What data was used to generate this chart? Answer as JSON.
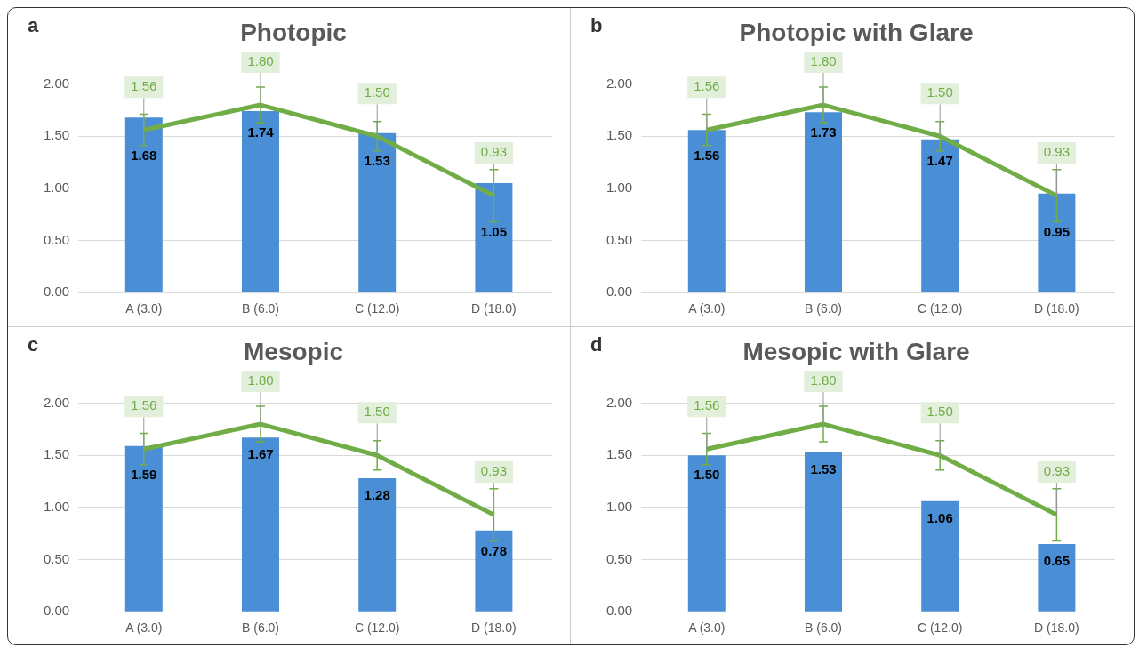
{
  "chart_data": [
    {
      "type": "bar",
      "title": "Photopic",
      "annotations": [
        "a"
      ],
      "categories": [
        "A (3.0)",
        "B (6.0)",
        "C (12.0)",
        "D (18.0)"
      ],
      "ylim": [
        0,
        2
      ],
      "yticks": [
        {
          "value": 0,
          "label": "0.00"
        },
        {
          "value": 0.5,
          "label": "0.50"
        },
        {
          "value": 1,
          "label": "1.00"
        },
        {
          "value": 1.5,
          "label": "1.50"
        },
        {
          "value": 2,
          "label": "2.00"
        }
      ],
      "grid": "y",
      "series": [
        {
          "color": "#4a8fd6",
          "values": [
            1.68,
            1.74,
            1.53,
            1.05
          ],
          "value_labels": [
            "1.68",
            "1.74",
            "1.53",
            "1.05"
          ]
        },
        {
          "type": "line",
          "color": "#70ad47",
          "values": [
            1.56,
            1.8,
            1.5,
            0.93
          ],
          "value_labels": [
            "1.56",
            "1.80",
            "1.50",
            "0.93"
          ],
          "errors": [
            0.15,
            0.17,
            0.14,
            0.25
          ]
        }
      ]
    },
    {
      "type": "bar",
      "title": "Photopic with Glare",
      "annotations": [
        "b"
      ],
      "categories": [
        "A (3.0)",
        "B (6.0)",
        "C (12.0)",
        "D (18.0)"
      ],
      "ylim": [
        0,
        2
      ],
      "yticks": [
        {
          "value": 0,
          "label": "0.00"
        },
        {
          "value": 0.5,
          "label": "0.50"
        },
        {
          "value": 1,
          "label": "1.00"
        },
        {
          "value": 1.5,
          "label": "1.50"
        },
        {
          "value": 2,
          "label": "2.00"
        }
      ],
      "grid": "y",
      "series": [
        {
          "color": "#4a8fd6",
          "values": [
            1.56,
            1.73,
            1.47,
            0.95
          ],
          "value_labels": [
            "1.56",
            "1.73",
            "1.47",
            "0.95"
          ]
        },
        {
          "type": "line",
          "color": "#70ad47",
          "values": [
            1.56,
            1.8,
            1.5,
            0.93
          ],
          "value_labels": [
            "1.56",
            "1.80",
            "1.50",
            "0.93"
          ],
          "errors": [
            0.15,
            0.17,
            0.14,
            0.25
          ]
        }
      ]
    },
    {
      "type": "bar",
      "title": "Mesopic",
      "annotations": [
        "c"
      ],
      "categories": [
        "A (3.0)",
        "B (6.0)",
        "C (12.0)",
        "D (18.0)"
      ],
      "ylim": [
        0,
        2
      ],
      "yticks": [
        {
          "value": 0,
          "label": "0.00"
        },
        {
          "value": 0.5,
          "label": "0.50"
        },
        {
          "value": 1,
          "label": "1.00"
        },
        {
          "value": 1.5,
          "label": "1.50"
        },
        {
          "value": 2,
          "label": "2.00"
        }
      ],
      "grid": "y",
      "series": [
        {
          "color": "#4a8fd6",
          "values": [
            1.59,
            1.67,
            1.28,
            0.78
          ],
          "value_labels": [
            "1.59",
            "1.67",
            "1.28",
            "0.78"
          ]
        },
        {
          "type": "line",
          "color": "#70ad47",
          "values": [
            1.56,
            1.8,
            1.5,
            0.93
          ],
          "value_labels": [
            "1.56",
            "1.80",
            "1.50",
            "0.93"
          ],
          "errors": [
            0.15,
            0.17,
            0.14,
            0.25
          ]
        }
      ]
    },
    {
      "type": "bar",
      "title": "Mesopic with Glare",
      "annotations": [
        "d"
      ],
      "categories": [
        "A (3.0)",
        "B (6.0)",
        "C (12.0)",
        "D (18.0)"
      ],
      "ylim": [
        0,
        2
      ],
      "yticks": [
        {
          "value": 0,
          "label": "0.00"
        },
        {
          "value": 0.5,
          "label": "0.50"
        },
        {
          "value": 1,
          "label": "1.00"
        },
        {
          "value": 1.5,
          "label": "1.50"
        },
        {
          "value": 2,
          "label": "2.00"
        }
      ],
      "grid": "y",
      "series": [
        {
          "color": "#4a8fd6",
          "values": [
            1.5,
            1.53,
            1.06,
            0.65
          ],
          "value_labels": [
            "1.50",
            "1.53",
            "1.06",
            "0.65"
          ]
        },
        {
          "type": "line",
          "color": "#70ad47",
          "values": [
            1.56,
            1.8,
            1.5,
            0.93
          ],
          "value_labels": [
            "1.56",
            "1.80",
            "1.50",
            "0.93"
          ],
          "errors": [
            0.15,
            0.17,
            0.14,
            0.25
          ]
        }
      ]
    }
  ]
}
